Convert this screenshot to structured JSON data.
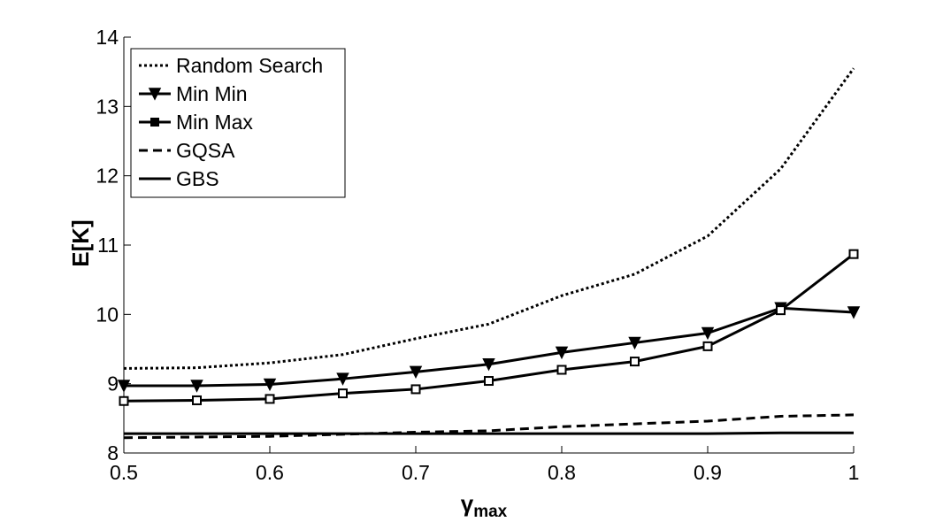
{
  "chart_data": {
    "type": "line",
    "title": "",
    "xlabel_main": "γ",
    "xlabel_sub": "max",
    "ylabel": "E[K]",
    "xlim": [
      0.5,
      1.0
    ],
    "ylim": [
      8,
      14
    ],
    "xticks": [
      "0.5",
      "0.6",
      "0.7",
      "0.8",
      "0.9",
      "1"
    ],
    "yticks": [
      "8",
      "9",
      "10",
      "11",
      "12",
      "13",
      "14"
    ],
    "x": [
      0.5,
      0.55,
      0.6,
      0.65,
      0.7,
      0.75,
      0.8,
      0.85,
      0.9,
      0.95,
      1.0
    ],
    "grid": false,
    "legend_position": "top-left",
    "series": [
      {
        "name": "Random Search",
        "style": "dotted",
        "marker": "none",
        "values": [
          9.22,
          9.23,
          9.3,
          9.42,
          9.65,
          9.86,
          10.27,
          10.58,
          11.13,
          12.1,
          13.55
        ]
      },
      {
        "name": "Min Min",
        "style": "solid",
        "marker": "triangle-down",
        "values": [
          8.97,
          8.97,
          8.99,
          9.07,
          9.17,
          9.28,
          9.45,
          9.59,
          9.73,
          10.09,
          10.03
        ]
      },
      {
        "name": "Min Max",
        "style": "solid",
        "marker": "square",
        "values": [
          8.75,
          8.76,
          8.78,
          8.86,
          8.92,
          9.04,
          9.2,
          9.32,
          9.54,
          10.06,
          10.87
        ]
      },
      {
        "name": "GQSA",
        "style": "dashed",
        "marker": "none",
        "values": [
          8.22,
          8.23,
          8.24,
          8.27,
          8.3,
          8.32,
          8.38,
          8.42,
          8.46,
          8.53,
          8.55
        ]
      },
      {
        "name": "GBS",
        "style": "solid",
        "marker": "none",
        "values": [
          8.28,
          8.28,
          8.28,
          8.28,
          8.28,
          8.28,
          8.28,
          8.28,
          8.28,
          8.29,
          8.29
        ]
      }
    ]
  }
}
